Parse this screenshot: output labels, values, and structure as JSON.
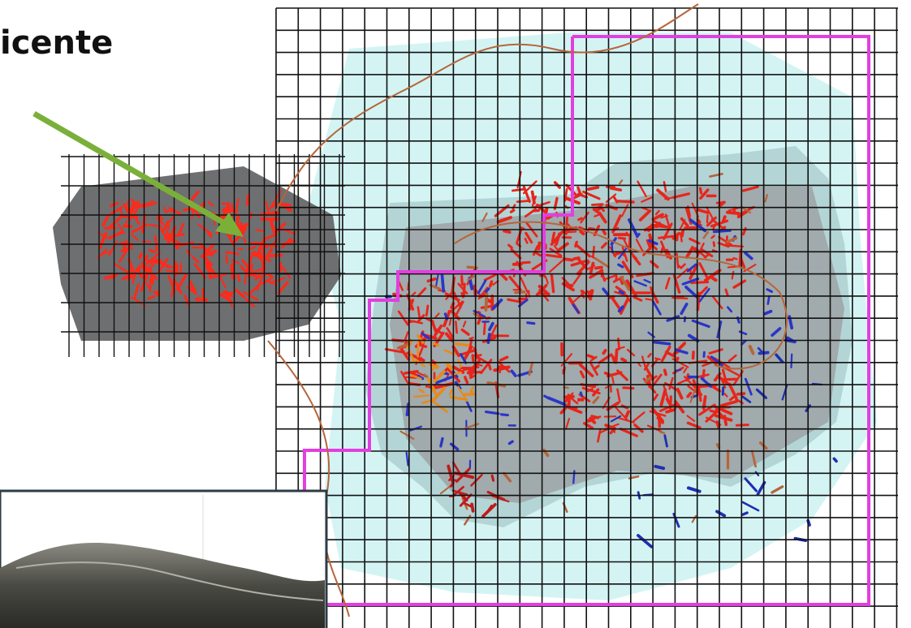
{
  "title": "icente"
}
